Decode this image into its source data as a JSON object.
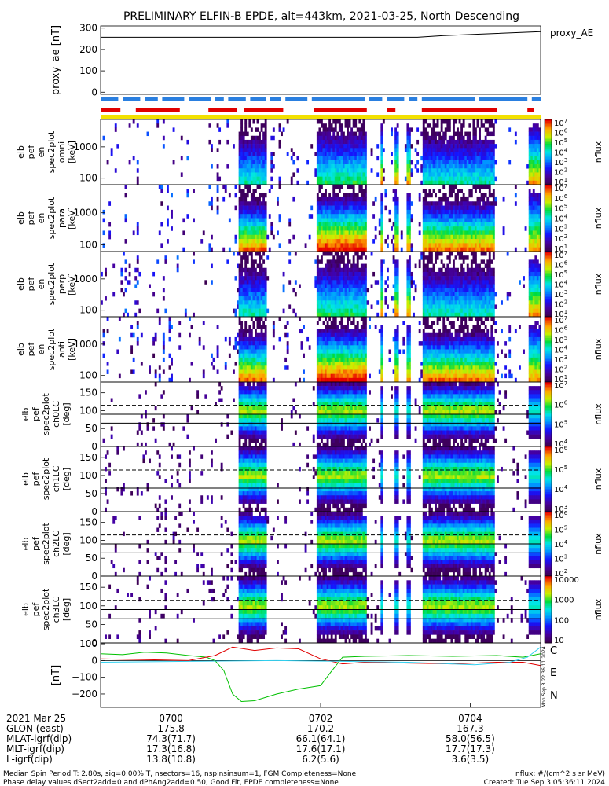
{
  "title": "PRELIMINARY ELFIN-B EPDE, alt=443km, 2021-03-25, North Descending",
  "colors": {
    "bar_blue": "#2a7fe0",
    "bar_red": "#e00000",
    "bar_yellow": "#f2e000",
    "line_green": "#00c000",
    "line_red": "#e00000",
    "line_cyan": "#30d0f0"
  },
  "chart_data": [
    {
      "type": "line",
      "panel": "proxy_ae",
      "ylabel": "proxy_ae [nT]",
      "ylim": [
        -10,
        310
      ],
      "yticks": [
        "300",
        "200",
        "100",
        "0"
      ],
      "legend": "proxy_AE",
      "series": [
        {
          "name": "proxy_AE",
          "x": [
            0,
            0.72,
            0.78,
            1.0
          ],
          "values": [
            257,
            257,
            265,
            283
          ]
        }
      ]
    },
    {
      "type": "heatmap",
      "panel": "energy_omni",
      "ylabel_lines": [
        "elb",
        "pef",
        "en",
        "spec2plot",
        "omni",
        "[keV]"
      ],
      "yticks": [
        "1000",
        "100"
      ],
      "zlabel": "nflux",
      "colorbar_ticks": [
        "10^7",
        "10^6",
        "10^5",
        "10^4",
        "10^3",
        "10^2",
        "10^1"
      ]
    },
    {
      "type": "heatmap",
      "panel": "energy_para",
      "ylabel_lines": [
        "elb",
        "pef",
        "en",
        "spec2plot",
        "para",
        "[keV]"
      ],
      "yticks": [
        "1000",
        "100"
      ],
      "zlabel": "nflux",
      "colorbar_ticks": [
        "10^7",
        "10^6",
        "10^5",
        "10^4",
        "10^3",
        "10^2",
        "10^1"
      ]
    },
    {
      "type": "heatmap",
      "panel": "energy_perp",
      "ylabel_lines": [
        "elb",
        "pef",
        "en",
        "spec2plot",
        "perp",
        "[keV]"
      ],
      "yticks": [
        "1000",
        "100"
      ],
      "zlabel": "nflux",
      "colorbar_ticks": [
        "10^7",
        "10^6",
        "10^5",
        "10^4",
        "10^3",
        "10^2",
        "10^1"
      ]
    },
    {
      "type": "heatmap",
      "panel": "energy_anti",
      "ylabel_lines": [
        "elb",
        "pef",
        "en",
        "spec2plot",
        "anti",
        "[keV]"
      ],
      "yticks": [
        "1000",
        "100"
      ],
      "zlabel": "nflux",
      "colorbar_ticks": [
        "10^7",
        "10^6",
        "10^5",
        "10^4",
        "10^3",
        "10^2",
        "10^1"
      ]
    },
    {
      "type": "heatmap",
      "panel": "pa_ch0",
      "ylabel_lines": [
        "elb",
        "pef",
        "spec2plot",
        "ch0LC",
        "[deg]"
      ],
      "yticks": [
        "150",
        "100",
        "50",
        "0"
      ],
      "zlabel": "nflux",
      "colorbar_ticks": [
        "10^7",
        "10^6",
        "10^5",
        "10^4"
      ]
    },
    {
      "type": "heatmap",
      "panel": "pa_ch1",
      "ylabel_lines": [
        "elb",
        "pef",
        "spec2plot",
        "ch1LC",
        "[deg]"
      ],
      "yticks": [
        "150",
        "100",
        "50",
        "0"
      ],
      "zlabel": "nflux",
      "colorbar_ticks": [
        "10^6",
        "10^5",
        "10^4",
        "10^3"
      ]
    },
    {
      "type": "heatmap",
      "panel": "pa_ch2",
      "ylabel_lines": [
        "elb",
        "pef",
        "spec2plot",
        "ch2LC",
        "[deg]"
      ],
      "yticks": [
        "150",
        "100",
        "50",
        "0"
      ],
      "zlabel": "nflux",
      "colorbar_ticks": [
        "10^6",
        "10^5",
        "10^4",
        "10^3",
        "10^2"
      ]
    },
    {
      "type": "heatmap",
      "panel": "pa_ch3",
      "ylabel_lines": [
        "elb",
        "pef",
        "spec2plot",
        "ch3LC",
        "[deg]"
      ],
      "yticks": [
        "150",
        "100",
        "50",
        "0"
      ],
      "zlabel": "nflux",
      "colorbar_ticks": [
        "10000",
        "1000",
        "100",
        "10"
      ]
    },
    {
      "type": "line",
      "panel": "magnetic",
      "ylabel": "[nT]",
      "ylim": [
        -280,
        105
      ],
      "yticks": [
        "100",
        "0",
        "−100",
        "−200"
      ],
      "legend_labels": [
        {
          "name": "C",
          "color": "#30d0f0"
        },
        {
          "name": "E",
          "color": "#e00000"
        },
        {
          "name": "N",
          "color": "#00c000"
        }
      ],
      "series": [
        {
          "name": "N",
          "x": [
            0,
            0.05,
            0.1,
            0.15,
            0.2,
            0.24,
            0.26,
            0.28,
            0.3,
            0.32,
            0.35,
            0.4,
            0.45,
            0.5,
            0.52,
            0.55,
            0.6,
            0.7,
            0.8,
            0.9,
            0.96,
            1.0
          ],
          "values": [
            40,
            35,
            50,
            45,
            30,
            20,
            0,
            -60,
            -200,
            -245,
            -240,
            -200,
            -170,
            -150,
            -80,
            20,
            25,
            30,
            25,
            30,
            20,
            40
          ]
        },
        {
          "name": "E",
          "x": [
            0,
            0.1,
            0.2,
            0.26,
            0.3,
            0.35,
            0.4,
            0.45,
            0.5,
            0.55,
            0.6,
            0.7,
            0.8,
            0.9,
            0.96,
            1.0
          ],
          "values": [
            10,
            5,
            0,
            30,
            80,
            60,
            75,
            70,
            10,
            -20,
            -10,
            -15,
            -20,
            -10,
            -10,
            -30
          ]
        },
        {
          "name": "C",
          "x": [
            0,
            0.2,
            0.4,
            0.55,
            0.7,
            0.85,
            0.93,
            0.97,
            1.0
          ],
          "values": [
            -10,
            -5,
            0,
            -5,
            -10,
            -25,
            -10,
            20,
            80
          ]
        }
      ]
    }
  ],
  "side_stamp": "Mon Sep  3 22:36:11 2024",
  "xaxis": {
    "row_labels": [
      "2021 Mar 25",
      "GLON (east)",
      "MLAT-igrf(dip)",
      "MLT-igrf(dip)",
      "L-igrf(dip)"
    ],
    "columns": [
      [
        "0700",
        "175.8",
        "74.3(71.7)",
        "17.3(16.8)",
        "13.8(10.8)"
      ],
      [
        "0702",
        "170.2",
        "66.1(64.1)",
        "17.6(17.1)",
        "6.2(5.6)"
      ],
      [
        "0704",
        "167.3",
        "58.0(56.5)",
        "17.7(17.3)",
        "3.6(3.5)"
      ]
    ]
  },
  "footer": {
    "line1": "Median Spin Period T: 2.80s, sig=0.00% T, nsectors=16, nspinsinsum=1, FGM Completeness=None",
    "line2": "Phase delay values dSect2add=0 and dPhAng2add=0.50, Good Fit, EPDE completeness=None",
    "right1": "nflux: #/(cm^2 s sr MeV)",
    "right2": "Created: Tue Sep  3 05:36:11 2024"
  }
}
